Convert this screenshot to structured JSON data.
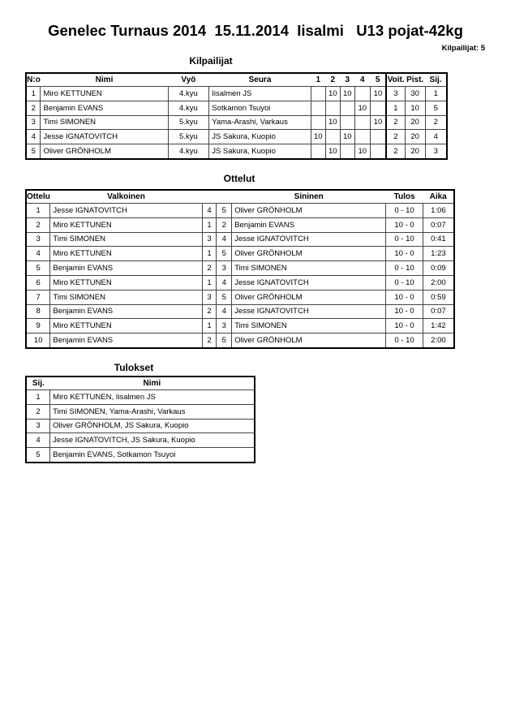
{
  "title": "Genelec Turnaus 2014  15.11.2014  Iisalmi   U13 pojat-42kg",
  "competitor_count": "Kilpailijat: 5",
  "competitors": {
    "heading": "Kilpailijat",
    "headers": [
      "N:o",
      "Nimi",
      "Vyö",
      "Seura",
      "1",
      "2",
      "3",
      "4",
      "5",
      "Voit.",
      "Pist.",
      "Sij."
    ],
    "rows": [
      [
        "1",
        "Miro KETTUNEN",
        "4.kyu",
        "Iisalmen JS",
        "",
        "10",
        "10",
        "",
        "10",
        "3",
        "30",
        "1"
      ],
      [
        "2",
        "Benjamin EVANS",
        "4.kyu",
        "Sotkamon Tsuyoi",
        "",
        "",
        "",
        "10",
        "",
        "1",
        "10",
        "5"
      ],
      [
        "3",
        "Timi SIMONEN",
        "5.kyu",
        "Yama-Arashi, Varkaus",
        "",
        "10",
        "",
        "",
        "10",
        "2",
        "20",
        "2"
      ],
      [
        "4",
        "Jesse IGNATOVITCH",
        "5.kyu",
        "JS Sakura, Kuopio",
        "10",
        "",
        "10",
        "",
        "",
        "2",
        "20",
        "4"
      ],
      [
        "5",
        "Oliver GRÖNHOLM",
        "4.kyu",
        "JS Sakura, Kuopio",
        "",
        "10",
        "",
        "10",
        "",
        "2",
        "20",
        "3"
      ]
    ]
  },
  "matches": {
    "heading": "Ottelut",
    "headers": [
      "Ottelu",
      "Valkoinen",
      "",
      "",
      "Sininen",
      "Tulos",
      "Aika"
    ],
    "rows": [
      [
        "1",
        "Jesse IGNATOVITCH",
        "4",
        "5",
        "Oliver GRÖNHOLM",
        "0 - 10",
        "1:06"
      ],
      [
        "2",
        "Miro KETTUNEN",
        "1",
        "2",
        "Benjamin EVANS",
        "10 - 0",
        "0:07"
      ],
      [
        "3",
        "Timi SIMONEN",
        "3",
        "4",
        "Jesse IGNATOVITCH",
        "0 - 10",
        "0:41"
      ],
      [
        "4",
        "Miro KETTUNEN",
        "1",
        "5",
        "Oliver GRÖNHOLM",
        "10 - 0",
        "1:23"
      ],
      [
        "5",
        "Benjamin EVANS",
        "2",
        "3",
        "Timi SIMONEN",
        "0 - 10",
        "0:09"
      ],
      [
        "6",
        "Miro KETTUNEN",
        "1",
        "4",
        "Jesse IGNATOVITCH",
        "0 - 10",
        "2:00"
      ],
      [
        "7",
        "Timi SIMONEN",
        "3",
        "5",
        "Oliver GRÖNHOLM",
        "10 - 0",
        "0:59"
      ],
      [
        "8",
        "Benjamin EVANS",
        "2",
        "4",
        "Jesse IGNATOVITCH",
        "10 - 0",
        "0:07"
      ],
      [
        "9",
        "Miro KETTUNEN",
        "1",
        "3",
        "Timi SIMONEN",
        "10 - 0",
        "1:42"
      ],
      [
        "10",
        "Benjamin EVANS",
        "2",
        "5",
        "Oliver GRÖNHOLM",
        "0 - 10",
        "2:00"
      ]
    ]
  },
  "results": {
    "heading": "Tulokset",
    "headers": [
      "Sij.",
      "Nimi"
    ],
    "rows": [
      [
        "1",
        "Miro KETTUNEN, Iisalmen JS"
      ],
      [
        "2",
        "Timi SIMONEN, Yama-Arashi, Varkaus"
      ],
      [
        "3",
        "Oliver GRÖNHOLM, JS Sakura, Kuopio"
      ],
      [
        "4",
        "Jesse IGNATOVITCH, JS Sakura, Kuopio"
      ],
      [
        "5",
        "Benjamin EVANS, Sotkamon Tsuyoi"
      ]
    ]
  }
}
